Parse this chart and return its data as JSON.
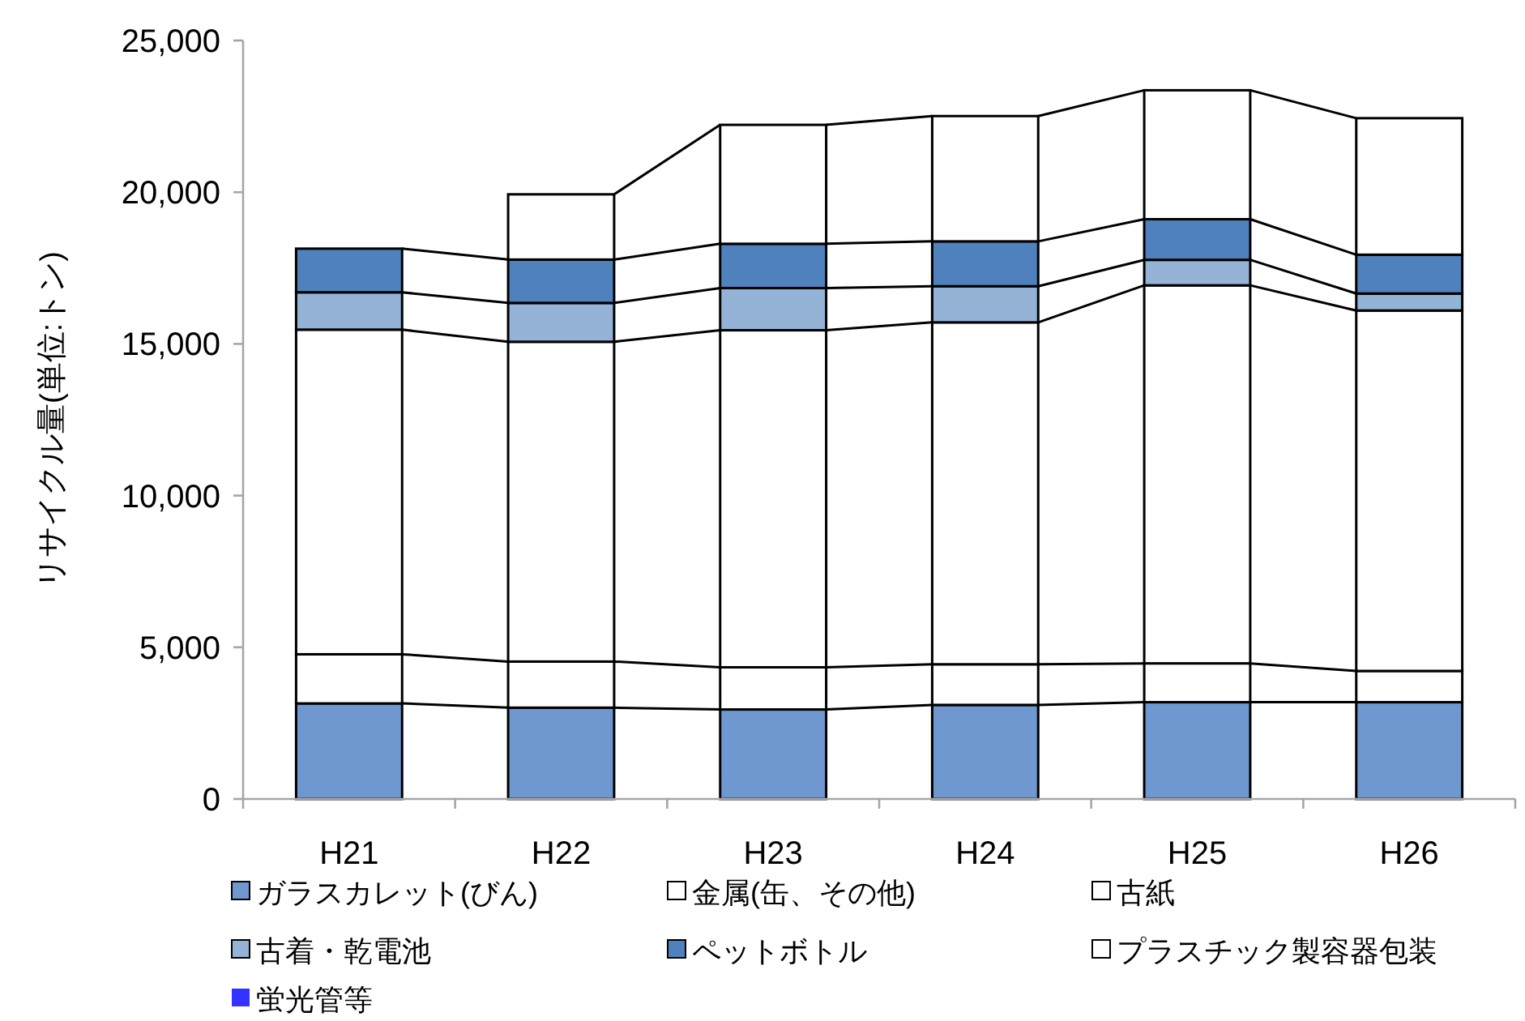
{
  "chart_data": {
    "type": "bar",
    "stacked": true,
    "ylabel": "リサイクル量(単位:トン)",
    "categories": [
      "H21",
      "H22",
      "H23",
      "H24",
      "H25",
      "H26"
    ],
    "series": [
      {
        "name": "ガラスカレット(びん)",
        "color": "#6f97d0",
        "values": [
          3150,
          3010,
          2950,
          3100,
          3190,
          3190
        ]
      },
      {
        "name": "金属(缶、その他)",
        "color": "#ffffff",
        "values": [
          1620,
          1520,
          1390,
          1340,
          1280,
          1030
        ]
      },
      {
        "name": "古紙",
        "color": "#ffffff",
        "values": [
          10700,
          10540,
          11110,
          11270,
          12460,
          11880
        ]
      },
      {
        "name": "古着・乾電池",
        "color": "#95b3d7",
        "values": [
          1230,
          1280,
          1390,
          1190,
          840,
          560
        ]
      },
      {
        "name": "ペットボトル",
        "color": "#4f81bd",
        "values": [
          1440,
          1430,
          1460,
          1480,
          1340,
          1280
        ]
      },
      {
        "name": "プラスチック製容器包装",
        "color": "#ffffff",
        "values": [
          null,
          2150,
          3920,
          4130,
          4250,
          4500
        ]
      },
      {
        "name": "蛍光管等",
        "color": "#3333ff",
        "values": [
          null,
          null,
          null,
          null,
          null,
          null
        ]
      }
    ],
    "ylim": [
      0,
      25000
    ],
    "yticks": [
      {
        "value": 0,
        "label": "0"
      },
      {
        "value": 5000,
        "label": "5,000"
      },
      {
        "value": 10000,
        "label": "10,000"
      },
      {
        "value": 15000,
        "label": "15,000"
      },
      {
        "value": 20000,
        "label": "20,000"
      },
      {
        "value": 25000,
        "label": "25,000"
      }
    ],
    "legend": "bottom"
  }
}
